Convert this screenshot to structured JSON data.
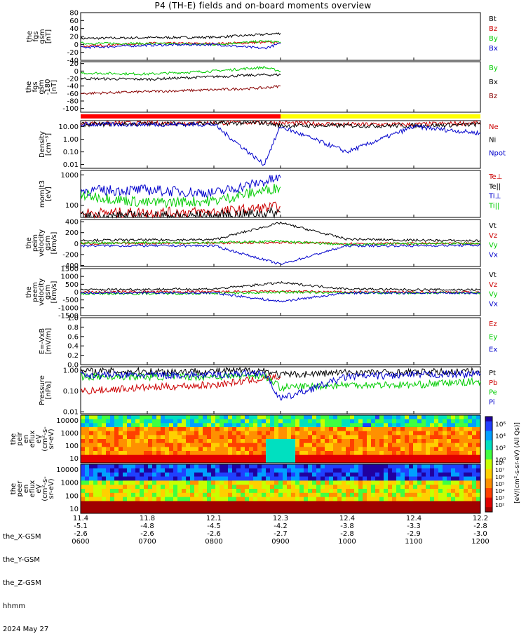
{
  "title": "P4 (TH-E) fields and on-board moments overview",
  "chart_data": {
    "type": "line",
    "title": "P4 (TH-E) fields and on-board moments overview",
    "x_range_hhmm": [
      "0600",
      "1200"
    ],
    "date": "2024 May 27",
    "panels": [
      {
        "id": "fgs_gsm",
        "ylabel": [
          "the",
          "fgs",
          "gsm",
          "[nT]"
        ],
        "yticks": [
          "80",
          "60",
          "40",
          "20",
          "0",
          "-20",
          "-40"
        ],
        "ylim": [
          -40,
          80
        ],
        "series": [
          {
            "name": "Bt",
            "color": "#000000",
            "x": [
              "0600",
              "0700",
              "0800",
              "0845",
              "0900"
            ],
            "values": [
              15,
              17,
              18,
              25,
              28
            ]
          },
          {
            "name": "Bz",
            "color": "#cc0000",
            "x": [
              "0600",
              "0700",
              "0800",
              "0845",
              "0900"
            ],
            "values": [
              -5,
              3,
              2,
              5,
              5
            ]
          },
          {
            "name": "By",
            "color": "#00cc00",
            "x": [
              "0600",
              "0700",
              "0800",
              "0845",
              "0900"
            ],
            "values": [
              3,
              2,
              0,
              8,
              6
            ]
          },
          {
            "name": "Bx",
            "color": "#0000cc",
            "x": [
              "0600",
              "0700",
              "0800",
              "0845",
              "0900"
            ],
            "values": [
              -8,
              -2,
              0,
              -10,
              2
            ]
          }
        ]
      },
      {
        "id": "fgs_gsm_2",
        "ylabel": [
          "the",
          "fgs",
          "gsm",
          "-180",
          "[nT]"
        ],
        "yticks": [
          "20",
          "0",
          "-20",
          "-40",
          "-60",
          "-80",
          "-100"
        ],
        "ylim": [
          -110,
          25
        ],
        "series": [
          {
            "name": "By",
            "color": "#00cc00",
            "x": [
              "0600",
              "0700",
              "0800",
              "0845",
              "0900"
            ],
            "values": [
              -5,
              -8,
              0,
              10,
              0
            ]
          },
          {
            "name": "Bx",
            "color": "#000000",
            "x": [
              "0600",
              "0700",
              "0800",
              "0845",
              "0900"
            ],
            "values": [
              -20,
              -22,
              -15,
              -10,
              -10
            ]
          },
          {
            "name": "Bz",
            "color": "#880000",
            "x": [
              "0600",
              "0700",
              "0800",
              "0845",
              "0900"
            ],
            "values": [
              -60,
              -55,
              -50,
              -45,
              -40
            ]
          }
        ]
      },
      {
        "id": "density",
        "ylabel": [
          "Density",
          "[cm⁻³]"
        ],
        "yticks": [
          "10.00",
          "1.00",
          "0.10",
          "0.01"
        ],
        "ylim": [
          0.005,
          30
        ],
        "scale": "log",
        "series": [
          {
            "name": "Ne",
            "color": "#cc0000",
            "x": [
              "0600",
              "0800",
              "0845",
              "0900",
              "1000",
              "1100",
              "1200"
            ],
            "values": [
              18,
              20,
              22,
              20,
              15,
              15,
              20
            ]
          },
          {
            "name": "Ni",
            "color": "#000000",
            "x": [
              "0600",
              "0800",
              "0845",
              "0900",
              "1000",
              "1100",
              "1200"
            ],
            "values": [
              15,
              18,
              20,
              12,
              12,
              12,
              15
            ]
          },
          {
            "name": "Npot",
            "color": "#0000cc",
            "x": [
              "0600",
              "0800",
              "0845",
              "0900",
              "1000",
              "1100",
              "1200"
            ],
            "values": [
              15,
              15,
              0.01,
              10,
              0.1,
              10,
              3
            ]
          }
        ]
      },
      {
        "id": "moment_temp",
        "ylabel": [
          "mom|t3",
          "[eV]"
        ],
        "yticks": [
          "1000",
          "100"
        ],
        "ylim": [
          40,
          1400
        ],
        "scale": "log",
        "series": [
          {
            "name": "Te⊥",
            "color": "#cc0000",
            "x": [
              "0600",
              "0700",
              "0800",
              "0900"
            ],
            "values": [
              55,
              58,
              60,
              90
            ]
          },
          {
            "name": "Te||",
            "color": "#000000",
            "x": [
              "0600",
              "0700",
              "0800",
              "0900"
            ],
            "values": [
              42,
              45,
              45,
              60
            ]
          },
          {
            "name": "Ti⊥",
            "color": "#0000cc",
            "x": [
              "0600",
              "0700",
              "0800",
              "0900"
            ],
            "values": [
              300,
              320,
              250,
              800
            ]
          },
          {
            "name": "Ti||",
            "color": "#00cc00",
            "x": [
              "0600",
              "0700",
              "0800",
              "0900"
            ],
            "values": [
              220,
              120,
              140,
              400
            ]
          }
        ]
      },
      {
        "id": "peim_velocity",
        "ylabel": [
          "the",
          "peim",
          "velocity",
          "gsm",
          "[km/s]"
        ],
        "yticks": [
          "400",
          "200",
          "0",
          "-200",
          "-400"
        ],
        "ylim": [
          -420,
          440
        ],
        "series": [
          {
            "name": "Vt",
            "color": "#000000",
            "x": [
              "0600",
              "0800",
              "0900",
              "1000",
              "1100",
              "1200"
            ],
            "values": [
              60,
              70,
              380,
              80,
              60,
              50
            ]
          },
          {
            "name": "Vz",
            "color": "#cc0000",
            "x": [
              "0600",
              "0800",
              "0900",
              "1000",
              "1100",
              "1200"
            ],
            "values": [
              0,
              10,
              20,
              0,
              0,
              0
            ]
          },
          {
            "name": "Vy",
            "color": "#00cc00",
            "x": [
              "0600",
              "0800",
              "0900",
              "1000",
              "1100",
              "1200"
            ],
            "values": [
              10,
              20,
              40,
              -20,
              0,
              0
            ]
          },
          {
            "name": "Vx",
            "color": "#0000cc",
            "x": [
              "0600",
              "0800",
              "0900",
              "1000",
              "1100",
              "1200"
            ],
            "values": [
              -40,
              -40,
              -380,
              -40,
              -40,
              -30
            ]
          }
        ]
      },
      {
        "id": "peem_velocity",
        "ylabel": [
          "the",
          "peem",
          "velocity",
          "gsm",
          "[km/s]"
        ],
        "yticks": [
          "1500",
          "1000",
          "500",
          "0",
          "-500",
          "-1000",
          "-1500"
        ],
        "ylim": [
          -1500,
          1500
        ],
        "series": [
          {
            "name": "Vt",
            "color": "#000000",
            "x": [
              "0600",
              "0800",
              "0900",
              "1000",
              "1100",
              "1200"
            ],
            "values": [
              150,
              200,
              600,
              200,
              150,
              150
            ]
          },
          {
            "name": "Vz",
            "color": "#cc0000",
            "x": [
              "0600",
              "0800",
              "0900",
              "1000",
              "1100",
              "1200"
            ],
            "values": [
              0,
              20,
              50,
              0,
              0,
              0
            ]
          },
          {
            "name": "Vy",
            "color": "#00cc00",
            "x": [
              "0600",
              "0800",
              "0900",
              "1000",
              "1100",
              "1200"
            ],
            "values": [
              -100,
              -80,
              0,
              -50,
              -50,
              -50
            ]
          },
          {
            "name": "Vx",
            "color": "#0000cc",
            "x": [
              "0600",
              "0800",
              "0900",
              "1000",
              "1100",
              "1200"
            ],
            "values": [
              -50,
              -50,
              -600,
              -50,
              -50,
              -50
            ]
          }
        ]
      },
      {
        "id": "e_vxb",
        "ylabel": [
          "E=-VxB",
          "[mV/m]"
        ],
        "yticks": [
          "1.0",
          "0.8",
          "0.6",
          "0.4",
          "0.2",
          "0.0"
        ],
        "ylim": [
          0,
          1
        ],
        "series": [
          {
            "name": "Ez",
            "color": "#cc0000",
            "x": [],
            "values": []
          },
          {
            "name": "Ey",
            "color": "#00cc00",
            "x": [],
            "values": []
          },
          {
            "name": "Ex",
            "color": "#0000cc",
            "x": [],
            "values": []
          }
        ]
      },
      {
        "id": "pressure",
        "ylabel": [
          "Pressure",
          "[nPa]"
        ],
        "yticks": [
          "1.00",
          "0.10",
          "0.01"
        ],
        "ylim": [
          0.008,
          1.5
        ],
        "scale": "log",
        "series": [
          {
            "name": "Pt",
            "color": "#000000",
            "x": [
              "0600",
              "0800",
              "0845",
              "0900",
              "1000",
              "1100",
              "1200"
            ],
            "values": [
              0.9,
              0.9,
              1.0,
              0.6,
              0.8,
              0.8,
              0.9
            ]
          },
          {
            "name": "Pb",
            "color": "#cc0000",
            "x": [
              "0600",
              "0700",
              "0800",
              "0845",
              "0900"
            ],
            "values": [
              0.1,
              0.15,
              0.2,
              0.4,
              0.5
            ]
          },
          {
            "name": "Pe",
            "color": "#00cc00",
            "x": [
              "0600",
              "0800",
              "0845",
              "0900",
              "1000",
              "1100",
              "1200"
            ],
            "values": [
              0.5,
              0.5,
              0.6,
              0.15,
              0.2,
              0.2,
              0.3
            ]
          },
          {
            "name": "Pi",
            "color": "#0000cc",
            "x": [
              "0600",
              "0800",
              "0845",
              "0900",
              "1000",
              "1100",
              "1200"
            ],
            "values": [
              0.6,
              0.6,
              0.8,
              0.04,
              0.5,
              0.6,
              0.7
            ]
          }
        ]
      }
    ],
    "spectrograms": [
      {
        "id": "peir",
        "ylabel": [
          "the",
          "peir",
          "en",
          "eflux",
          "eV",
          "(cm²-s-",
          "sr-eV)"
        ],
        "yticks": [
          "10000",
          "1000",
          "100",
          "10"
        ]
      },
      {
        "id": "peer",
        "ylabel": [
          "the",
          "peer",
          "en",
          "eflux",
          "eV",
          "(cm²-s-",
          "sr-eV)"
        ],
        "yticks": [
          "10000",
          "1000",
          "100",
          "10"
        ]
      }
    ],
    "colorbar_label": "[eV/(cm²-s-sr-eV) (All Qs)]",
    "colorbar_ticks_1": [
      "10⁶",
      "10⁴",
      "10²",
      "10⁰"
    ],
    "colorbar_ticks_2": [
      "10⁸",
      "10⁷",
      "10⁶",
      "10⁵",
      "10⁴",
      "10³",
      "10²"
    ],
    "status_bar_colors": [
      "#ff0000",
      "#ffff00"
    ],
    "x_rows": [
      {
        "label": "the_X-GSM",
        "values": [
          "11.4",
          "11.8",
          "12.1",
          "12.3",
          "12.4",
          "12.4",
          "12.2"
        ]
      },
      {
        "label": "the_Y-GSM",
        "values": [
          "-5.1",
          "-4.8",
          "-4.5",
          "-4.2",
          "-3.8",
          "-3.3",
          "-2.8"
        ]
      },
      {
        "label": "the_Z-GSM",
        "values": [
          "-2.6",
          "-2.6",
          "-2.6",
          "-2.7",
          "-2.8",
          "-2.9",
          "-3.0"
        ]
      },
      {
        "label": "hhmm",
        "values": [
          "0600",
          "0700",
          "0800",
          "0900",
          "1000",
          "1100",
          "1200"
        ]
      }
    ]
  }
}
